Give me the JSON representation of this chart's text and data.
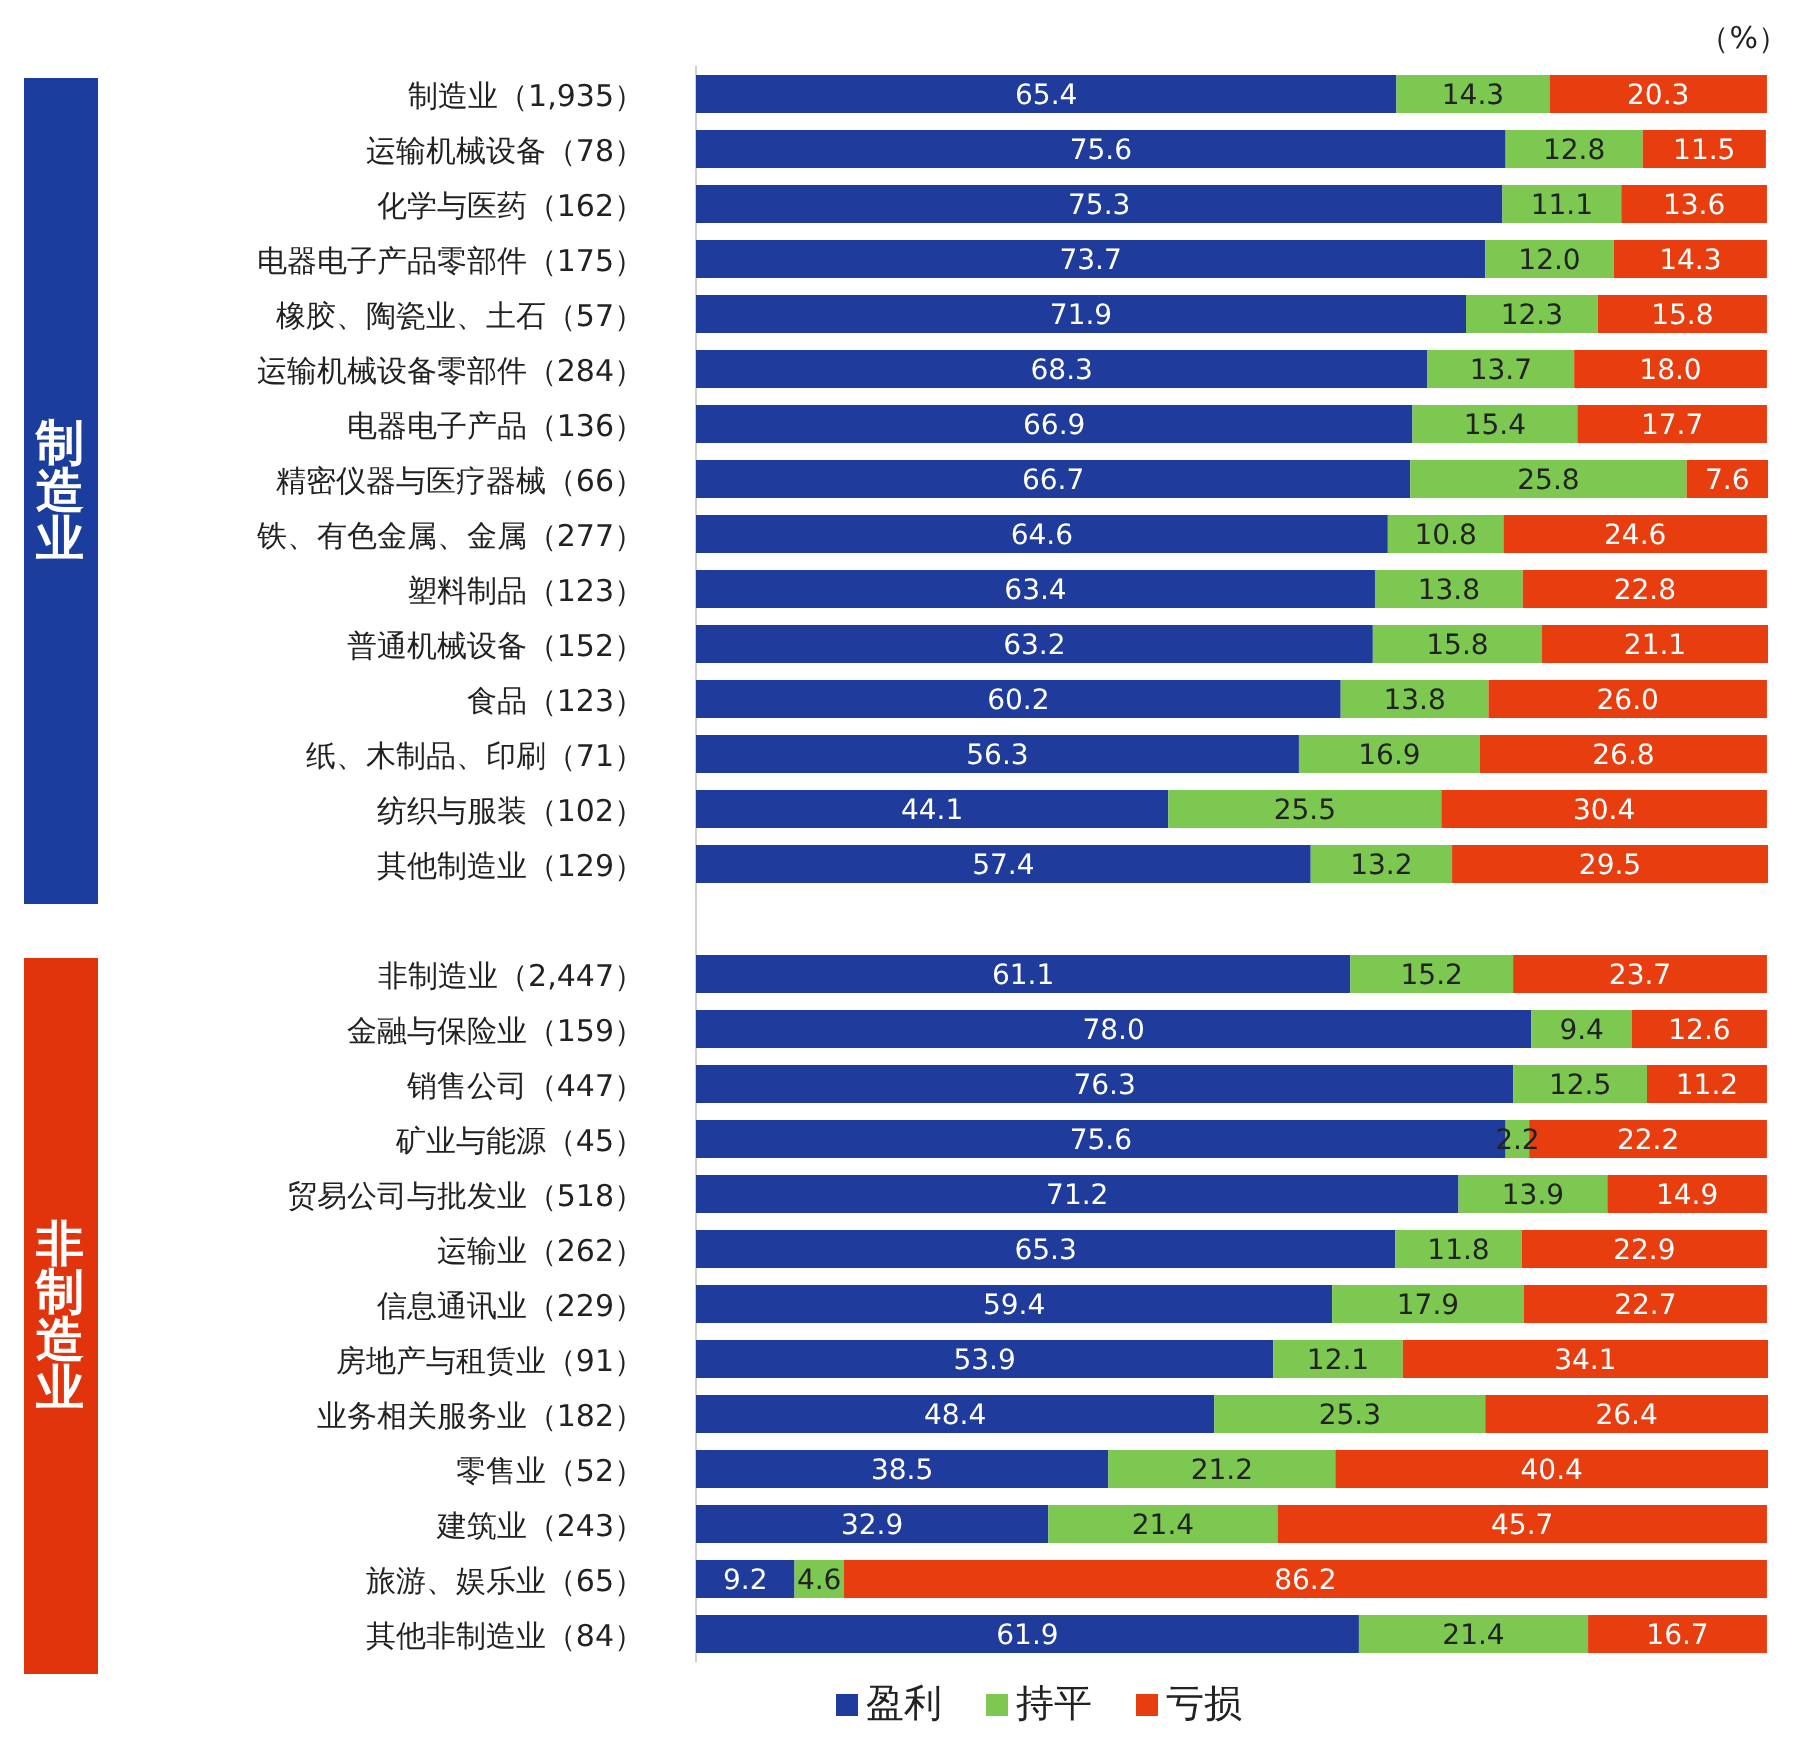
{
  "chart_data": {
    "type": "bar",
    "orientation": "horizontal",
    "stacked": true,
    "legend": "bottom",
    "grid": false,
    "categories": [
      "制造业（1,935）",
      "运输机械设备（78）",
      "化学与医药（162）",
      "电器电子产品零部件（175）",
      "橡胶、陶瓷业、土石（57）",
      "运输机械设备零部件（284）",
      "电器电子产品（136）",
      "精密仪器与医疗器械（66）",
      "铁、有色金属、金属（277）",
      "塑料制品（123）",
      "普通机械设备（152）",
      "食品（123）",
      "纸、木制品、印刷（71）",
      "纺织与服装（102）",
      "其他制造业（129）",
      null,
      "非制造业（2,447）",
      "金融与保险业（159）",
      "销售公司（447）",
      "矿业与能源（45）",
      "贸易公司与批发业（518）",
      "运输业（262）",
      "信息通讯业（229）",
      "房地产与租赁业（91）",
      "业务相关服务业（182）",
      "零售业（52）",
      "建筑业（243）",
      "旅游、娱乐业（65）",
      "其他非制造业（84）"
    ],
    "series": [
      {
        "name": "盈利",
        "color": "#1f3c9c",
        "values": [
          65.4,
          75.6,
          75.3,
          73.7,
          71.9,
          68.3,
          66.9,
          66.7,
          64.6,
          63.4,
          63.2,
          60.2,
          56.3,
          44.1,
          57.4,
          null,
          61.1,
          78.0,
          76.3,
          75.6,
          71.2,
          65.3,
          59.4,
          53.9,
          48.4,
          38.5,
          32.9,
          9.2,
          61.9
        ],
        "value_labels": [
          "65.4",
          "75.6",
          "75.3",
          "73.7",
          "71.9",
          "68.3",
          "66.9",
          "66.7",
          "64.6",
          "63.4",
          "63.2",
          "60.2",
          "56.3",
          "44.1",
          "57.4",
          null,
          "61.1",
          "78.0",
          "76.3",
          "75.6",
          "71.2",
          "65.3",
          "59.4",
          "53.9",
          "48.4",
          "38.5",
          "32.9",
          "9.2",
          "61.9"
        ]
      },
      {
        "name": "持平",
        "color": "#7dc850",
        "values": [
          14.3,
          12.8,
          11.1,
          12.0,
          12.3,
          13.7,
          15.4,
          25.8,
          10.8,
          13.8,
          15.8,
          13.8,
          16.9,
          25.5,
          13.2,
          null,
          15.2,
          9.4,
          12.5,
          2.2,
          13.9,
          11.8,
          17.9,
          12.1,
          25.3,
          21.2,
          21.4,
          4.6,
          21.4
        ],
        "value_labels": [
          "14.3",
          "12.8",
          "11.1",
          "12.0",
          "12.3",
          "13.7",
          "15.4",
          "25.8",
          "10.8",
          "13.8",
          "15.8",
          "13.8",
          "16.9",
          "25.5",
          "13.2",
          null,
          "15.2",
          "9.4",
          "12.5",
          "2.2",
          "13.9",
          "11.8",
          "17.9",
          "12.1",
          "25.3",
          "21.2",
          "21.4",
          "4.6",
          "21.4"
        ]
      },
      {
        "name": "亏损",
        "color": "#e83d0f",
        "values": [
          20.3,
          11.5,
          13.6,
          14.3,
          15.8,
          18.0,
          17.7,
          7.6,
          24.6,
          22.8,
          21.1,
          26.0,
          26.8,
          30.4,
          29.5,
          null,
          23.7,
          12.6,
          11.2,
          22.2,
          14.9,
          22.9,
          22.7,
          34.1,
          26.4,
          40.4,
          45.7,
          86.2,
          16.7
        ],
        "value_labels": [
          "20.3",
          "11.5",
          "13.6",
          "14.3",
          "15.8",
          "18.0",
          "17.7",
          "7.6",
          "24.6",
          "22.8",
          "21.1",
          "26.0",
          "26.8",
          "30.4",
          "29.5",
          null,
          "23.7",
          "12.6",
          "11.2",
          "22.2",
          "14.9",
          "22.9",
          "22.7",
          "34.1",
          "26.4",
          "40.4",
          "45.7",
          "86.2",
          "16.7"
        ]
      }
    ],
    "annotations": [
      "（%）",
      "制造业",
      "非制造业"
    ]
  }
}
